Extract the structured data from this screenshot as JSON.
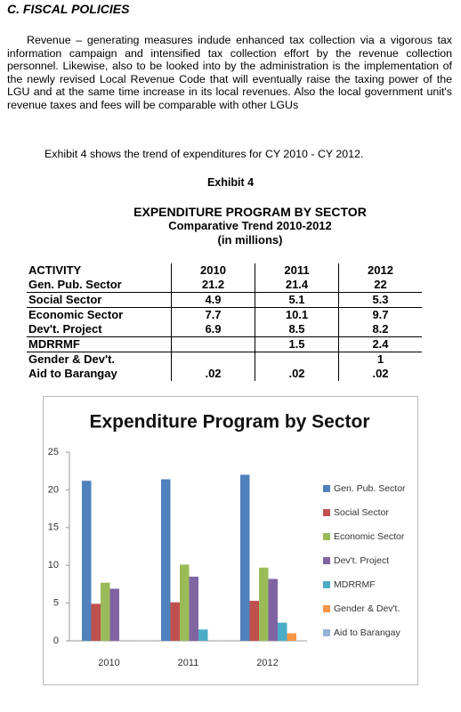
{
  "heading": "C. FISCAL POLICIES",
  "paragraph": "Revenue – generating measures indude enhanced tax collection via a vigorous tax information campaign and intensified tax collection effort by the revenue collection personnel. Likewise, also to be looked into by the administration is the implementation of the newly revised Local Revenue Code that will eventually raise the taxing power of the LGU and at the same time increase in its local revenues. Also the local government unit's revenue taxes and fees will be comparable with other LGUs",
  "intro": "Exhibit 4 shows the trend of expenditures for CY 2010 - CY 2012.",
  "exhibit": "Exhibit 4",
  "table": {
    "title": "EXPENDITURE PROGRAM BY SECTOR",
    "subtitle": "Comparative Trend 2010-2012",
    "unit": "(in millions)",
    "header": [
      "ACTIVITY",
      "2010",
      "2011",
      "2012"
    ],
    "rows": [
      [
        "Gen. Pub. Sector",
        "21.2",
        "21.4",
        "22"
      ],
      [
        "Social Sector",
        "4.9",
        "5.1",
        "5.3"
      ],
      [
        "Economic Sector",
        "7.7",
        "10.1",
        "9.7"
      ],
      [
        "Dev't. Project",
        "6.9",
        "8.5",
        "8.2"
      ],
      [
        "MDRRMF",
        null,
        "1.5",
        "2.4"
      ],
      [
        "Gender & Dev't.",
        null,
        null,
        "1"
      ],
      [
        "Aid to Barangay",
        ".02",
        ".02",
        ".02"
      ]
    ]
  },
  "chart_data": {
    "type": "bar",
    "title": "Expenditure Program by Sector",
    "categories": [
      "2010",
      "2011",
      "2012"
    ],
    "series": [
      {
        "name": "Gen. Pub. Sector",
        "color": "#4f81bd",
        "values": [
          21.2,
          21.4,
          22
        ]
      },
      {
        "name": "Social Sector",
        "color": "#c0504d",
        "values": [
          4.9,
          5.1,
          5.3
        ]
      },
      {
        "name": "Economic Sector",
        "color": "#9bbb59",
        "values": [
          7.7,
          10.1,
          9.7
        ]
      },
      {
        "name": "Dev't. Project",
        "color": "#8064a2",
        "values": [
          6.9,
          8.5,
          8.2
        ]
      },
      {
        "name": "MDRRMF",
        "color": "#4bacc6",
        "values": [
          null,
          1.5,
          2.4
        ]
      },
      {
        "name": "Gender & Dev't.",
        "color": "#f79646",
        "values": [
          null,
          null,
          1
        ]
      },
      {
        "name": "Aid to Barangay",
        "color": "#95b3d7",
        "values": [
          0.02,
          0.02,
          0.02
        ]
      }
    ],
    "ylim": [
      0,
      25
    ],
    "yticks": [
      0,
      5,
      10,
      15,
      20,
      25
    ],
    "legend": "right"
  }
}
